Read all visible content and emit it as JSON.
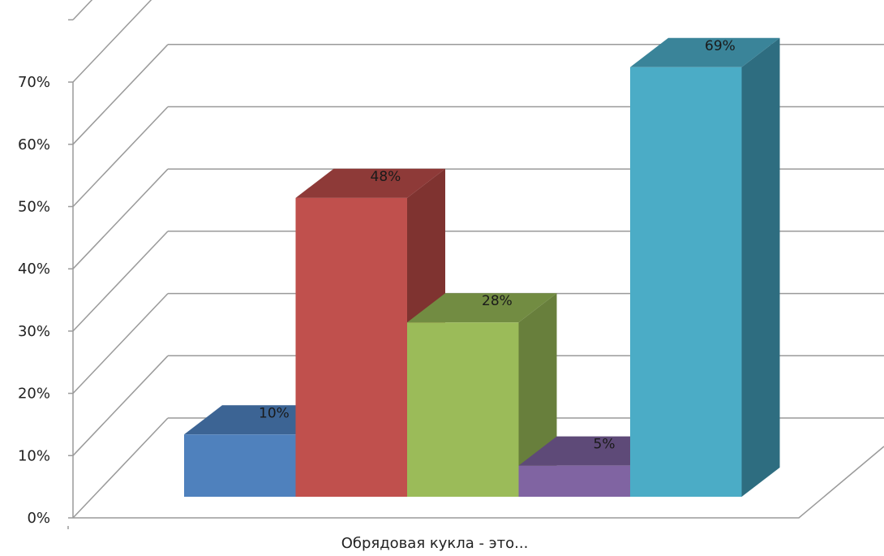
{
  "chart_data": {
    "type": "bar",
    "style": "3d-clustered-column",
    "categories": [
      "Обрядовая кукла - это..."
    ],
    "xlabel": "Обрядовая кукла - это...",
    "ylim": [
      0,
      70
    ],
    "y_ticks": [
      "0%",
      "10%",
      "20%",
      "30%",
      "40%",
      "50%",
      "60%",
      "70%"
    ],
    "grid": true,
    "legend": "none",
    "series": [
      {
        "value": 10,
        "label": "10%",
        "color": "#4F81BD",
        "top": "#3C6494",
        "side": "#385D8A"
      },
      {
        "value": 48,
        "label": "48%",
        "color": "#C0504D",
        "top": "#8E3A38",
        "side": "#7F3330"
      },
      {
        "value": 28,
        "label": "28%",
        "color": "#9BBB59",
        "top": "#728C42",
        "side": "#687F3C"
      },
      {
        "value": 5,
        "label": "5%",
        "color": "#8064A2",
        "top": "#5E4A78",
        "side": "#564470"
      },
      {
        "value": 69,
        "label": "69%",
        "color": "#4BACC6",
        "top": "#3A8499",
        "side": "#2E6D80"
      }
    ]
  }
}
